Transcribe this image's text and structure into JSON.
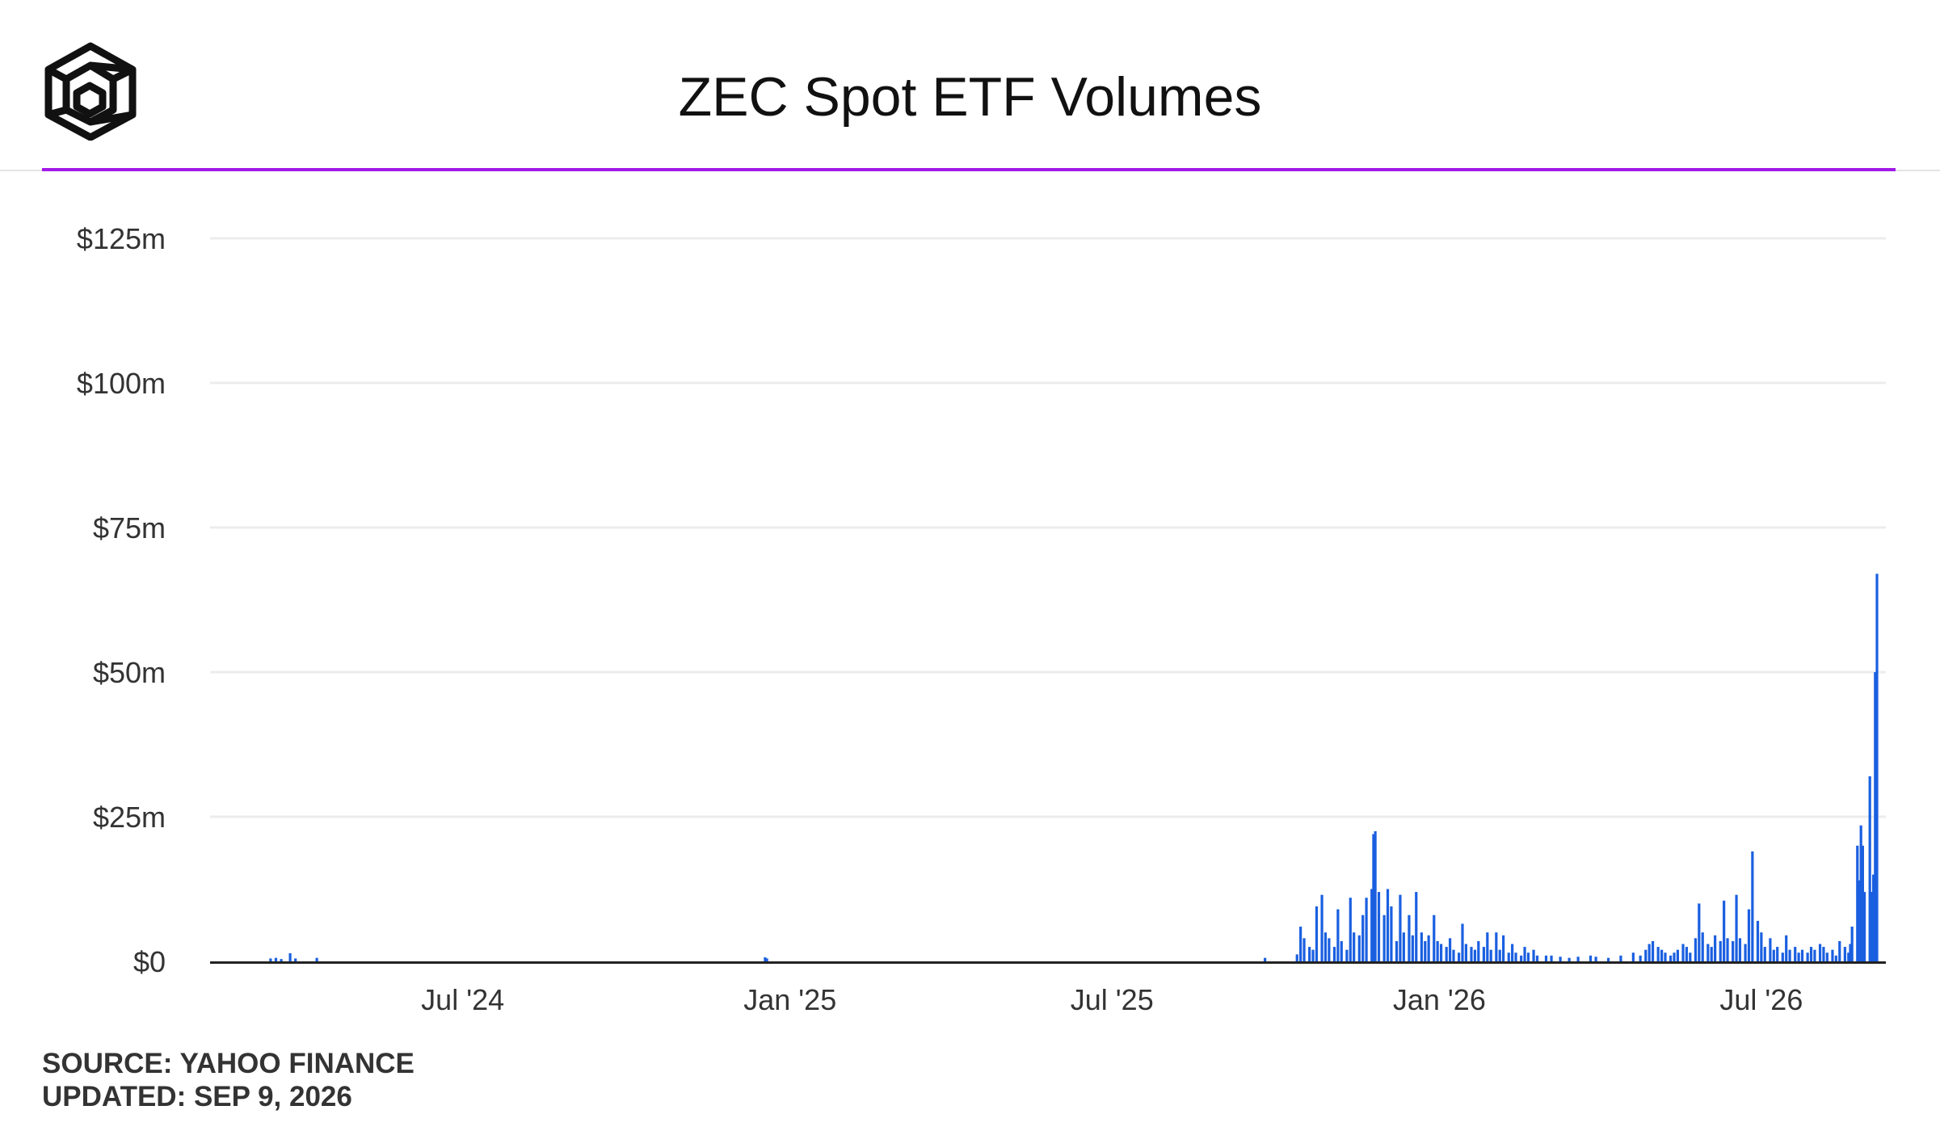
{
  "header": {
    "title": "ZEC Spot ETF Volumes",
    "logo_icon": "the-block-cube-logo-icon"
  },
  "colors": {
    "accent_rule": "#a11ae6",
    "bars": "#1a5fe0",
    "axis": "#222222",
    "grid": "#ececec",
    "text": "#333333"
  },
  "chart_data": {
    "type": "bar",
    "title": "ZEC Spot ETF Volumes",
    "xlabel": "",
    "ylabel": "",
    "x_range": [
      "2024-02-10",
      "2026-09-09"
    ],
    "ylim": [
      0,
      125
    ],
    "y_unit": "USD millions",
    "y_ticks": [
      0,
      25,
      50,
      75,
      100,
      125
    ],
    "y_tick_labels": [
      "$0",
      "$25m",
      "$50m",
      "$75m",
      "$100m",
      "$125m"
    ],
    "x_ticks": [
      "2024-07-01",
      "2025-01-01",
      "2025-07-01",
      "2026-01-01",
      "2026-07-01"
    ],
    "x_tick_labels": [
      "Jul '24",
      "Jan '25",
      "Jul '25",
      "Jan '26",
      "Jul '26"
    ],
    "grid": true,
    "legend": "none",
    "series": [
      {
        "points": [
          [
            "2024-03-15",
            0.5
          ],
          [
            "2024-03-18",
            0.6
          ],
          [
            "2024-03-21",
            0.4
          ],
          [
            "2024-03-26",
            1.4
          ],
          [
            "2024-03-29",
            0.5
          ],
          [
            "2024-04-10",
            0.6
          ],
          [
            "2024-12-18",
            0.7
          ],
          [
            "2024-12-19",
            0.5
          ],
          [
            "2025-09-25",
            0.6
          ],
          [
            "2025-10-13",
            1.2
          ],
          [
            "2025-10-15",
            6.0
          ],
          [
            "2025-10-17",
            4.0
          ],
          [
            "2025-10-20",
            2.5
          ],
          [
            "2025-10-22",
            2.0
          ],
          [
            "2025-10-24",
            9.5
          ],
          [
            "2025-10-27",
            11.5
          ],
          [
            "2025-10-29",
            5.0
          ],
          [
            "2025-10-31",
            4.0
          ],
          [
            "2025-11-03",
            2.5
          ],
          [
            "2025-11-05",
            9.0
          ],
          [
            "2025-11-07",
            3.5
          ],
          [
            "2025-11-10",
            2.0
          ],
          [
            "2025-11-12",
            11.0
          ],
          [
            "2025-11-14",
            5.0
          ],
          [
            "2025-11-17",
            4.5
          ],
          [
            "2025-11-19",
            8.0
          ],
          [
            "2025-11-21",
            11.0
          ],
          [
            "2025-11-24",
            12.5
          ],
          [
            "2025-11-25",
            22.0
          ],
          [
            "2025-11-26",
            22.5
          ],
          [
            "2025-11-28",
            12.0
          ],
          [
            "2025-12-01",
            8.0
          ],
          [
            "2025-12-03",
            12.5
          ],
          [
            "2025-12-05",
            9.5
          ],
          [
            "2025-12-08",
            3.5
          ],
          [
            "2025-12-10",
            11.5
          ],
          [
            "2025-12-12",
            5.0
          ],
          [
            "2025-12-15",
            8.0
          ],
          [
            "2025-12-17",
            4.5
          ],
          [
            "2025-12-19",
            12.0
          ],
          [
            "2025-12-22",
            5.0
          ],
          [
            "2025-12-24",
            3.5
          ],
          [
            "2025-12-26",
            4.5
          ],
          [
            "2025-12-29",
            8.0
          ],
          [
            "2025-12-31",
            3.5
          ],
          [
            "2026-01-02",
            3.0
          ],
          [
            "2026-01-05",
            2.5
          ],
          [
            "2026-01-07",
            4.0
          ],
          [
            "2026-01-09",
            2.0
          ],
          [
            "2026-01-12",
            1.5
          ],
          [
            "2026-01-14",
            6.5
          ],
          [
            "2026-01-16",
            3.0
          ],
          [
            "2026-01-19",
            2.5
          ],
          [
            "2026-01-21",
            2.0
          ],
          [
            "2026-01-23",
            3.5
          ],
          [
            "2026-01-26",
            2.5
          ],
          [
            "2026-01-28",
            5.0
          ],
          [
            "2026-01-30",
            2.0
          ],
          [
            "2026-02-02",
            5.0
          ],
          [
            "2026-02-04",
            2.0
          ],
          [
            "2026-02-06",
            4.5
          ],
          [
            "2026-02-09",
            1.5
          ],
          [
            "2026-02-11",
            3.0
          ],
          [
            "2026-02-13",
            1.5
          ],
          [
            "2026-02-16",
            1.0
          ],
          [
            "2026-02-18",
            2.5
          ],
          [
            "2026-02-20",
            1.5
          ],
          [
            "2026-02-23",
            2.0
          ],
          [
            "2026-02-25",
            1.0
          ],
          [
            "2026-03-02",
            1.0
          ],
          [
            "2026-03-05",
            1.0
          ],
          [
            "2026-03-10",
            0.8
          ],
          [
            "2026-03-15",
            0.6
          ],
          [
            "2026-03-20",
            0.8
          ],
          [
            "2026-03-27",
            1.0
          ],
          [
            "2026-03-30",
            0.8
          ],
          [
            "2026-04-06",
            0.6
          ],
          [
            "2026-04-13",
            1.0
          ],
          [
            "2026-04-20",
            1.5
          ],
          [
            "2026-04-24",
            1.0
          ],
          [
            "2026-04-27",
            2.0
          ],
          [
            "2026-04-29",
            3.0
          ],
          [
            "2026-05-01",
            3.5
          ],
          [
            "2026-05-04",
            2.5
          ],
          [
            "2026-05-06",
            2.0
          ],
          [
            "2026-05-08",
            1.5
          ],
          [
            "2026-05-11",
            1.0
          ],
          [
            "2026-05-13",
            1.5
          ],
          [
            "2026-05-15",
            2.0
          ],
          [
            "2026-05-18",
            3.0
          ],
          [
            "2026-05-20",
            2.5
          ],
          [
            "2026-05-22",
            1.5
          ],
          [
            "2026-05-25",
            4.0
          ],
          [
            "2026-05-27",
            10.0
          ],
          [
            "2026-05-29",
            5.0
          ],
          [
            "2026-06-01",
            3.0
          ],
          [
            "2026-06-03",
            2.5
          ],
          [
            "2026-06-05",
            4.5
          ],
          [
            "2026-06-08",
            3.5
          ],
          [
            "2026-06-10",
            10.5
          ],
          [
            "2026-06-12",
            4.0
          ],
          [
            "2026-06-15",
            3.5
          ],
          [
            "2026-06-17",
            11.5
          ],
          [
            "2026-06-19",
            4.0
          ],
          [
            "2026-06-22",
            3.0
          ],
          [
            "2026-06-24",
            9.0
          ],
          [
            "2026-06-26",
            19.0
          ],
          [
            "2026-06-29",
            7.0
          ],
          [
            "2026-07-01",
            5.0
          ],
          [
            "2026-07-03",
            2.5
          ],
          [
            "2026-07-06",
            4.0
          ],
          [
            "2026-07-08",
            2.0
          ],
          [
            "2026-07-10",
            2.5
          ],
          [
            "2026-07-13",
            1.5
          ],
          [
            "2026-07-15",
            4.5
          ],
          [
            "2026-07-17",
            2.0
          ],
          [
            "2026-07-20",
            2.5
          ],
          [
            "2026-07-22",
            1.5
          ],
          [
            "2026-07-24",
            2.0
          ],
          [
            "2026-07-27",
            1.5
          ],
          [
            "2026-07-29",
            2.5
          ],
          [
            "2026-07-31",
            2.0
          ],
          [
            "2026-08-03",
            3.0
          ],
          [
            "2026-08-05",
            2.5
          ],
          [
            "2026-08-07",
            1.5
          ],
          [
            "2026-08-10",
            2.0
          ],
          [
            "2026-08-12",
            1.0
          ],
          [
            "2026-08-14",
            3.5
          ],
          [
            "2026-08-17",
            2.5
          ],
          [
            "2026-08-19",
            1.5
          ],
          [
            "2026-08-20",
            3.0
          ],
          [
            "2026-08-21",
            6.0
          ],
          [
            "2026-08-24",
            20.0
          ],
          [
            "2026-08-25",
            14.0
          ],
          [
            "2026-08-26",
            23.5
          ],
          [
            "2026-08-27",
            20.0
          ],
          [
            "2026-08-28",
            12.0
          ],
          [
            "2026-08-31",
            32.0
          ],
          [
            "2026-09-01",
            12.0
          ],
          [
            "2026-09-02",
            15.0
          ],
          [
            "2026-09-03",
            50.0
          ],
          [
            "2026-09-04",
            67.0
          ]
        ]
      }
    ]
  },
  "footer": {
    "source": "SOURCE: YAHOO FINANCE",
    "updated": "UPDATED: SEP 9, 2026"
  }
}
